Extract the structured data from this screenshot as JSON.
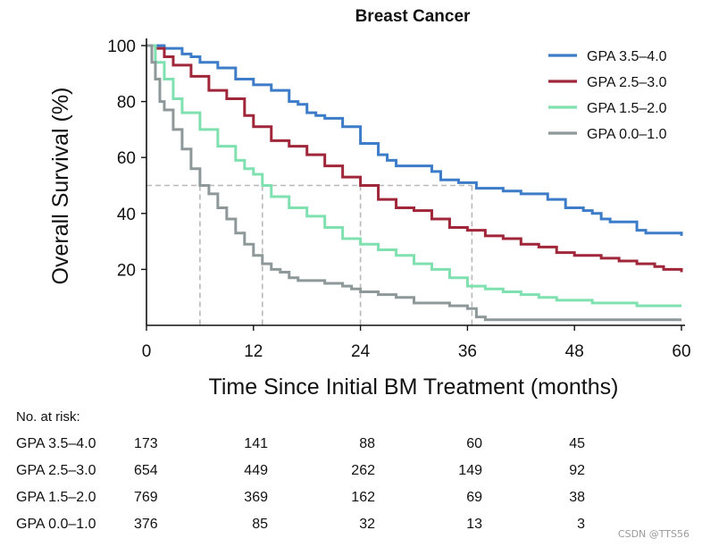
{
  "chart_data": {
    "type": "line",
    "title": "Breast Cancer",
    "xlabel": "Time Since Initial BM Treatment (months)",
    "ylabel": "Overall Survival (%)",
    "xlim": [
      0,
      60
    ],
    "ylim": [
      0,
      100
    ],
    "x_ticks": [
      0,
      12,
      24,
      36,
      48,
      60
    ],
    "y_ticks": [
      20,
      40,
      60,
      80,
      100
    ],
    "legend_position": "top-right",
    "reference_line": {
      "y": 50,
      "x_medians": [
        6,
        13,
        24,
        36.5
      ]
    },
    "series": [
      {
        "name": "GPA 3.5–4.0",
        "color": "#3c7cc8",
        "points": [
          [
            0,
            100
          ],
          [
            2,
            99
          ],
          [
            4,
            97
          ],
          [
            5,
            96
          ],
          [
            6,
            94
          ],
          [
            8,
            92
          ],
          [
            10,
            88
          ],
          [
            12,
            86
          ],
          [
            14,
            84
          ],
          [
            16,
            80
          ],
          [
            17,
            79
          ],
          [
            18,
            76
          ],
          [
            19,
            75
          ],
          [
            20,
            74
          ],
          [
            22,
            71
          ],
          [
            24,
            65
          ],
          [
            26,
            61
          ],
          [
            27,
            59
          ],
          [
            28,
            57
          ],
          [
            30,
            57
          ],
          [
            32,
            55
          ],
          [
            33,
            52
          ],
          [
            35,
            51
          ],
          [
            36,
            51
          ],
          [
            37,
            49
          ],
          [
            40,
            48
          ],
          [
            42,
            47
          ],
          [
            45,
            45
          ],
          [
            47,
            42
          ],
          [
            49,
            41
          ],
          [
            50,
            40
          ],
          [
            51,
            38
          ],
          [
            52,
            37
          ],
          [
            55,
            34
          ],
          [
            56,
            33
          ],
          [
            59,
            33
          ],
          [
            60,
            32
          ]
        ]
      },
      {
        "name": "GPA 2.5–3.0",
        "color": "#a0263a",
        "points": [
          [
            0,
            100
          ],
          [
            1,
            99
          ],
          [
            2,
            96
          ],
          [
            3,
            93
          ],
          [
            5,
            89
          ],
          [
            7,
            84
          ],
          [
            9,
            81
          ],
          [
            11,
            75
          ],
          [
            12,
            71
          ],
          [
            14,
            66
          ],
          [
            16,
            64
          ],
          [
            18,
            61
          ],
          [
            20,
            57
          ],
          [
            22,
            53
          ],
          [
            24,
            50
          ],
          [
            26,
            45
          ],
          [
            28,
            42
          ],
          [
            30,
            41
          ],
          [
            32,
            38
          ],
          [
            34,
            35
          ],
          [
            36,
            34
          ],
          [
            38,
            32
          ],
          [
            40,
            31
          ],
          [
            42,
            29
          ],
          [
            44,
            28
          ],
          [
            46,
            26
          ],
          [
            48,
            25
          ],
          [
            51,
            24
          ],
          [
            53,
            23
          ],
          [
            55,
            22
          ],
          [
            57,
            21
          ],
          [
            58,
            20
          ],
          [
            60,
            19
          ]
        ]
      },
      {
        "name": "GPA 1.5–2.0",
        "color": "#7fe0b0",
        "points": [
          [
            0,
            100
          ],
          [
            1,
            94
          ],
          [
            2,
            88
          ],
          [
            3,
            81
          ],
          [
            4,
            76
          ],
          [
            6,
            70
          ],
          [
            8,
            64
          ],
          [
            10,
            59
          ],
          [
            11,
            56
          ],
          [
            12,
            54
          ],
          [
            13,
            50
          ],
          [
            14,
            46
          ],
          [
            16,
            42
          ],
          [
            18,
            39
          ],
          [
            20,
            35
          ],
          [
            22,
            31
          ],
          [
            24,
            29
          ],
          [
            26,
            27
          ],
          [
            28,
            25
          ],
          [
            30,
            22
          ],
          [
            32,
            20
          ],
          [
            34,
            17
          ],
          [
            36,
            14
          ],
          [
            38,
            13
          ],
          [
            40,
            12
          ],
          [
            42,
            11
          ],
          [
            44,
            10
          ],
          [
            46,
            9
          ],
          [
            48,
            9
          ],
          [
            50,
            8
          ],
          [
            52,
            8
          ],
          [
            55,
            7
          ],
          [
            60,
            7
          ]
        ]
      },
      {
        "name": "GPA 0.0–1.0",
        "color": "#8e9898",
        "points": [
          [
            0,
            100
          ],
          [
            0.6,
            94
          ],
          [
            1,
            88
          ],
          [
            1.5,
            80
          ],
          [
            2,
            77
          ],
          [
            3,
            70
          ],
          [
            4,
            63
          ],
          [
            5,
            56
          ],
          [
            6,
            50
          ],
          [
            7,
            47
          ],
          [
            8,
            42
          ],
          [
            9,
            38
          ],
          [
            10,
            33
          ],
          [
            11,
            29
          ],
          [
            12,
            25
          ],
          [
            13,
            22
          ],
          [
            14,
            20
          ],
          [
            15,
            19
          ],
          [
            16,
            17
          ],
          [
            17,
            16
          ],
          [
            18,
            16
          ],
          [
            20,
            15
          ],
          [
            22,
            14
          ],
          [
            23,
            13
          ],
          [
            24,
            12
          ],
          [
            26,
            11
          ],
          [
            28,
            10
          ],
          [
            30,
            8
          ],
          [
            32,
            8
          ],
          [
            34,
            7
          ],
          [
            36,
            6
          ],
          [
            37,
            3
          ],
          [
            38,
            2
          ],
          [
            40,
            2
          ],
          [
            44,
            2
          ],
          [
            50,
            2
          ],
          [
            60,
            2
          ]
        ]
      }
    ]
  },
  "risk_table": {
    "label": "No. at risk:",
    "rows": [
      {
        "name": "GPA 3.5–4.0",
        "values": [
          "173",
          "141",
          "88",
          "60",
          "45"
        ]
      },
      {
        "name": "GPA 2.5–3.0",
        "values": [
          "654",
          "449",
          "262",
          "149",
          "92"
        ]
      },
      {
        "name": "GPA 1.5–2.0",
        "values": [
          "769",
          "369",
          "162",
          "69",
          "38"
        ]
      },
      {
        "name": "GPA 0.0–1.0",
        "values": [
          "376",
          "85",
          "32",
          "13",
          "3"
        ]
      }
    ]
  },
  "watermark": "CSDN @TTS56"
}
